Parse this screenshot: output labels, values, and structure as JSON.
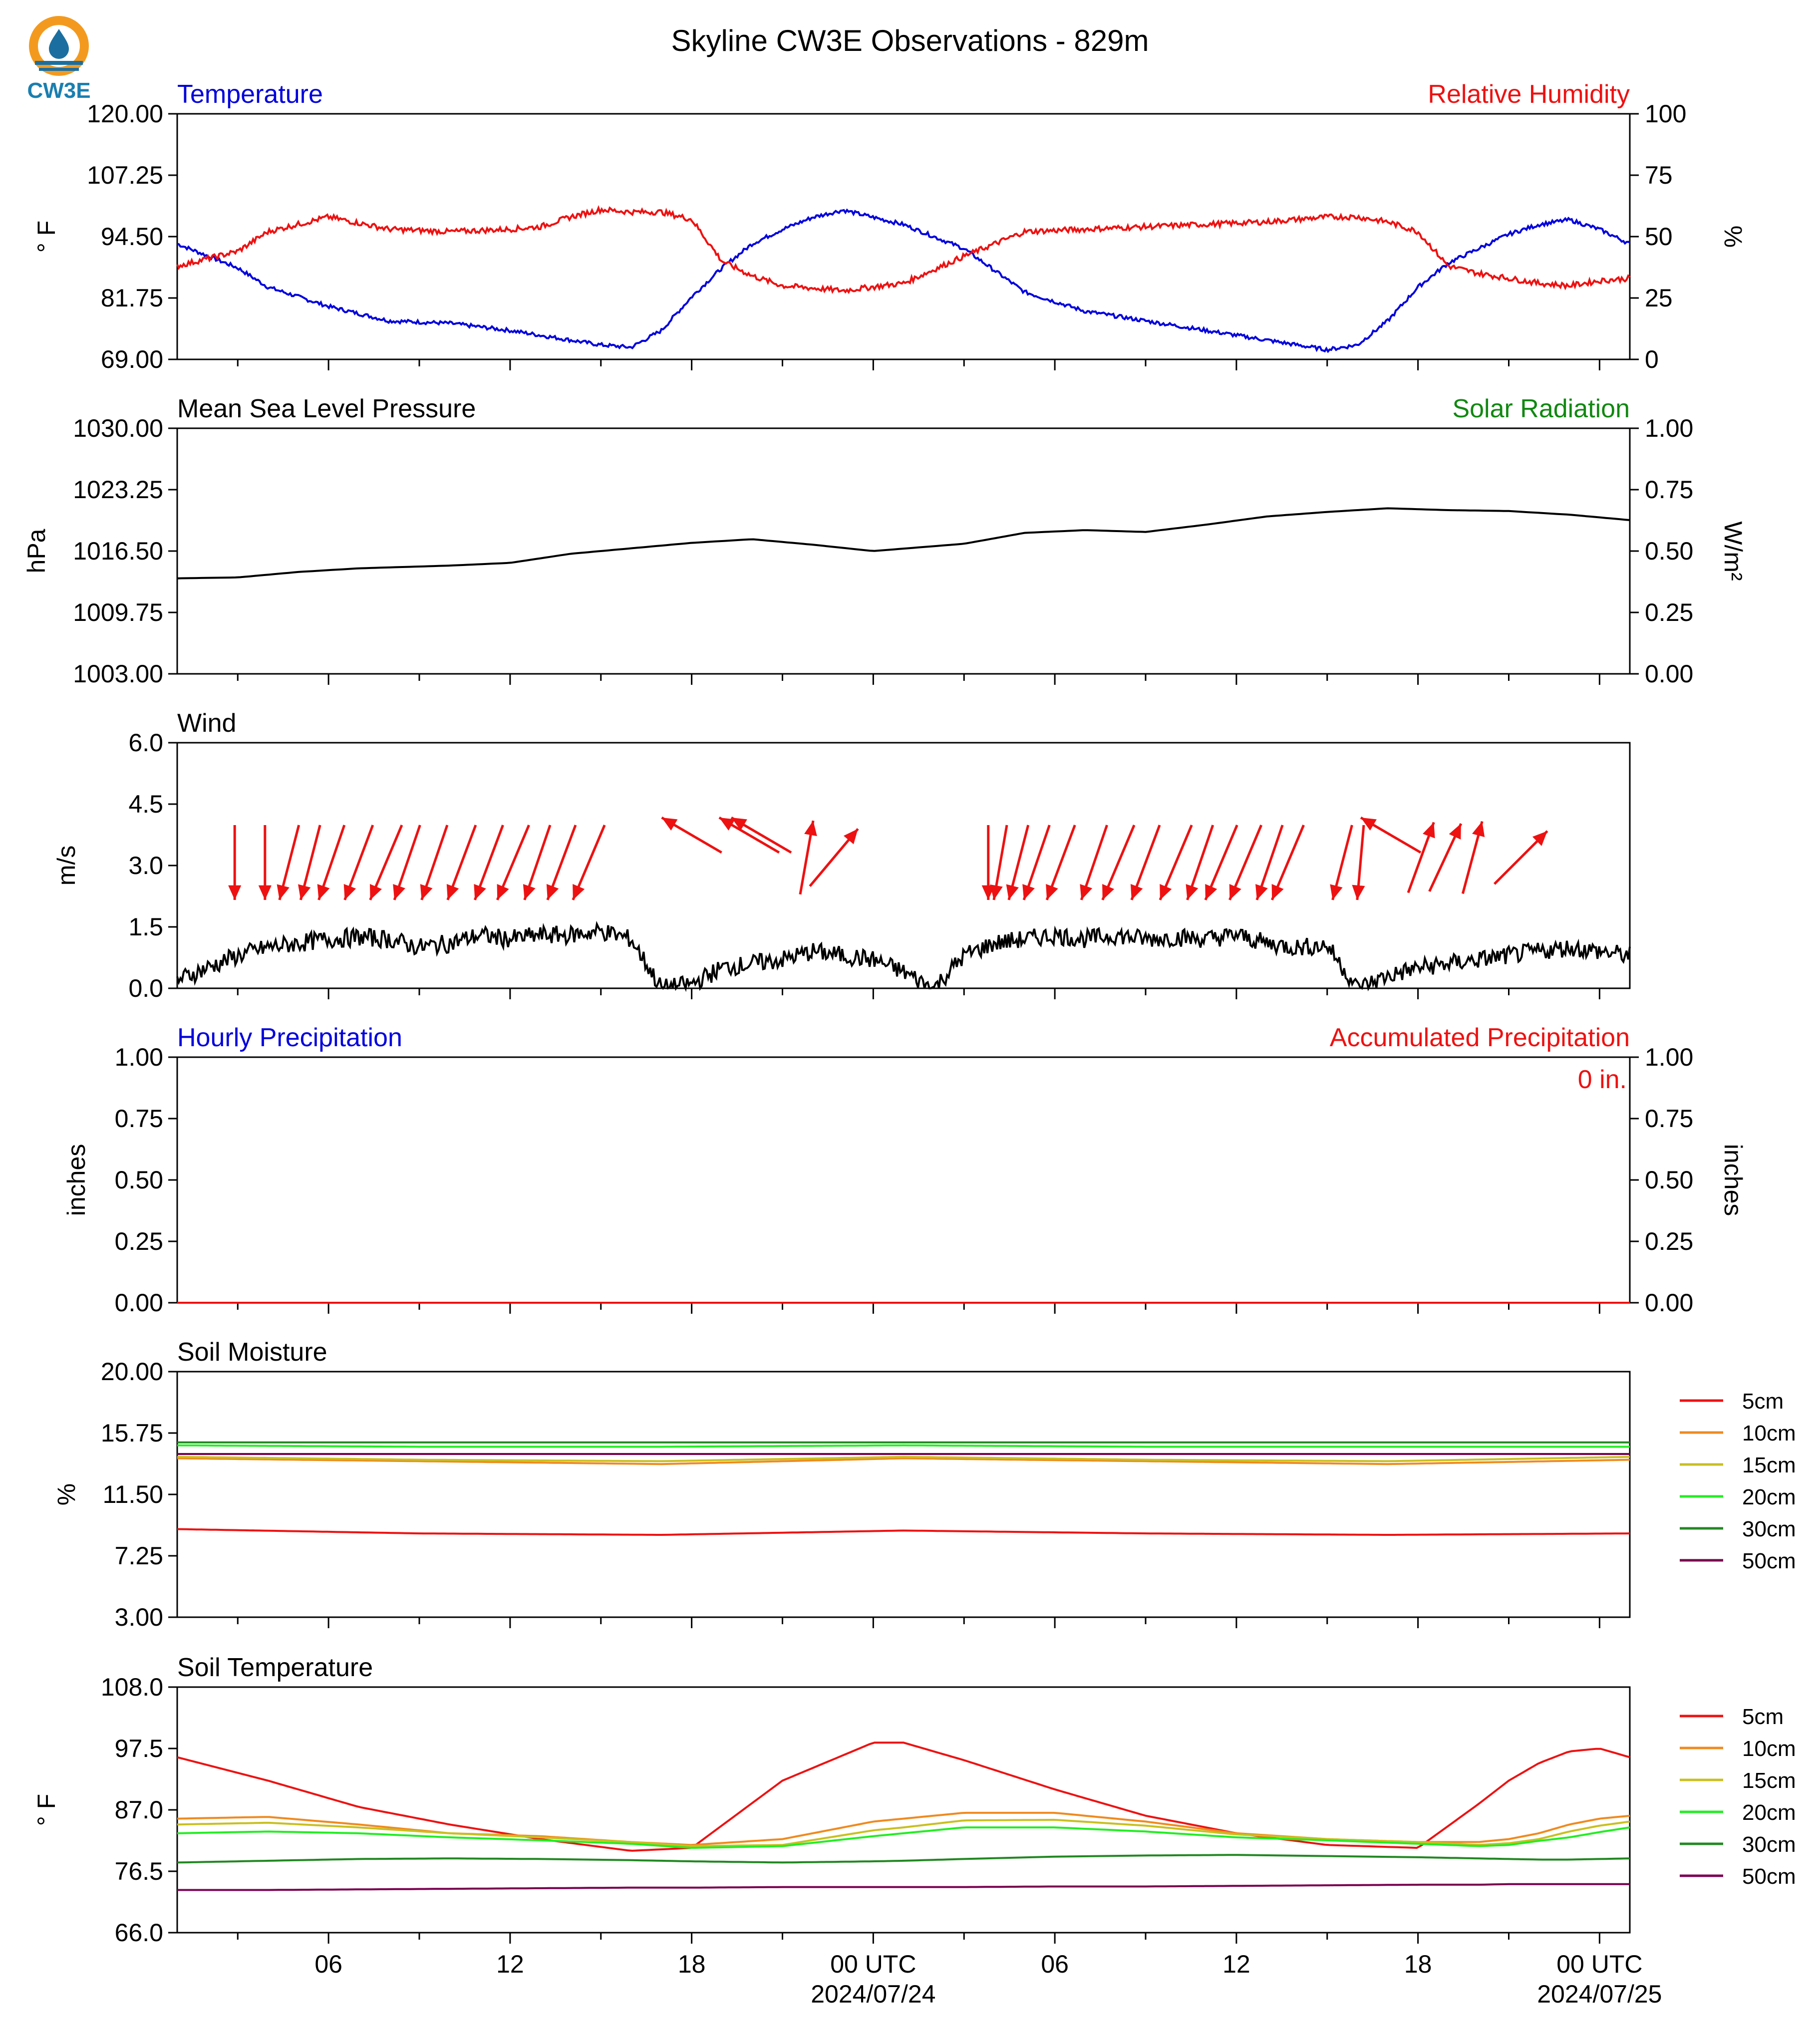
{
  "header": {
    "title": "Skyline CW3E Observations - 829m",
    "logo_text": "CW3E"
  },
  "colors": {
    "blue": "#0000dd",
    "red": "#ee1111",
    "green": "#118811",
    "black": "#000000"
  },
  "x_axis": {
    "tick_labels": [
      "06",
      "12",
      "18",
      "00 UTC",
      "06",
      "12",
      "18",
      "00 UTC"
    ],
    "date_labels": [
      "2024/07/24",
      "2024/07/25"
    ]
  },
  "chart_data": [
    {
      "id": "temperature",
      "type": "line",
      "title_left": "Temperature",
      "title_right": "Relative Humidity",
      "ylabel": "° F",
      "ylabel_right": "%",
      "ylim": [
        69.0,
        120.0
      ],
      "ylim_right": [
        0,
        100
      ],
      "yticks": [
        "69.00",
        "81.75",
        "94.50",
        "107.25",
        "120.00"
      ],
      "yticks_right": [
        "0",
        "25",
        "50",
        "75",
        "100"
      ],
      "x_hours": [
        0,
        2,
        3,
        5,
        7,
        9,
        11,
        12,
        13,
        14,
        15,
        16,
        17,
        18,
        19,
        20,
        21,
        22,
        24,
        26,
        28,
        30,
        32,
        34,
        36,
        37,
        38,
        39,
        40,
        41,
        42,
        43,
        44,
        45,
        46,
        47,
        48
      ],
      "series": [
        {
          "name": "Temperature",
          "color": "#0000dd",
          "axis": "left",
          "values": [
            93,
            88,
            84,
            80,
            77,
            76.5,
            75,
            74,
            73,
            72,
            71.5,
            75,
            82,
            88,
            93,
            96,
            98.5,
            100,
            97,
            92,
            83,
            79,
            77,
            75,
            73,
            72,
            71,
            72,
            77,
            84,
            89,
            92,
            95,
            97,
            98,
            96,
            93
          ]
        },
        {
          "name": "Relative Humidity",
          "color": "#ee1111",
          "axis": "right",
          "values": [
            38,
            44,
            52,
            58,
            53,
            52,
            53,
            54,
            58,
            61,
            60,
            60,
            57,
            40,
            34,
            30,
            29,
            28,
            31,
            42,
            52,
            53,
            54,
            55,
            56,
            57,
            58,
            58,
            56,
            52,
            38,
            35,
            33,
            31,
            30,
            32,
            33
          ]
        }
      ]
    },
    {
      "id": "pressure",
      "type": "line",
      "title_left": "Mean Sea Level Pressure",
      "title_right": "Solar Radiation",
      "ylabel": "hPa",
      "ylabel_right": "W/m²",
      "ylim": [
        1003.0,
        1030.0
      ],
      "ylim_right": [
        0.0,
        1.0
      ],
      "yticks": [
        "1003.00",
        "1009.75",
        "1016.50",
        "1023.25",
        "1030.00"
      ],
      "yticks_right": [
        "0.00",
        "0.25",
        "0.50",
        "0.75",
        "1.00"
      ],
      "x_hours": [
        0,
        2,
        4,
        6,
        9,
        11,
        13,
        15,
        17,
        19,
        21,
        23,
        26,
        28,
        30,
        32,
        34,
        36,
        38,
        40,
        42,
        44,
        46,
        48
      ],
      "series": [
        {
          "name": "Mean Sea Level Pressure",
          "color": "#000000",
          "values": [
            1013.5,
            1013.6,
            1014.2,
            1014.6,
            1014.9,
            1015.2,
            1016.2,
            1016.8,
            1017.4,
            1017.8,
            1017.2,
            1016.5,
            1017.3,
            1018.5,
            1018.8,
            1018.6,
            1019.4,
            1020.3,
            1020.8,
            1021.2,
            1021.0,
            1020.9,
            1020.5,
            1019.9
          ]
        }
      ]
    },
    {
      "id": "wind",
      "type": "line",
      "title_left": "Wind",
      "ylabel": "m/s",
      "ylim": [
        0.0,
        6.0
      ],
      "yticks": [
        "0.0",
        "1.5",
        "3.0",
        "4.5",
        "6.0"
      ],
      "x_hours": [
        0,
        1,
        2,
        3,
        4,
        5,
        6,
        7,
        8,
        9,
        10,
        11,
        12,
        13,
        14,
        15,
        16,
        17,
        18,
        19,
        20,
        21,
        22,
        23,
        24,
        25,
        26,
        27,
        28,
        29,
        30,
        31,
        32,
        33,
        34,
        35,
        36,
        37,
        38,
        39,
        40,
        41,
        42,
        43,
        44,
        45,
        46,
        47,
        48
      ],
      "series": [
        {
          "name": "Wind",
          "color": "#000000",
          "values": [
            0.2,
            0.5,
            0.8,
            1.0,
            1.1,
            1.2,
            1.25,
            1.2,
            1.0,
            1.1,
            1.3,
            1.2,
            1.3,
            1.3,
            1.4,
            1.2,
            0.0,
            0.1,
            0.5,
            0.6,
            0.7,
            0.9,
            0.8,
            0.7,
            0.4,
            0.0,
            0.8,
            1.1,
            1.2,
            1.3,
            1.2,
            1.3,
            1.2,
            1.25,
            1.2,
            1.3,
            1.1,
            1.0,
            1.05,
            0.0,
            0.3,
            0.5,
            0.6,
            0.7,
            0.8,
            0.9,
            1.0,
            0.9,
            0.8
          ]
        }
      ],
      "arrow_color": "#ee1111",
      "arrows_dir_deg": [
        0,
        0,
        15,
        15,
        20,
        22,
        25,
        20,
        20,
        22,
        22,
        25,
        20,
        22,
        25,
        300,
        330,
        355,
        10,
        40,
        0,
        10,
        15,
        20,
        22,
        20,
        25,
        22,
        25,
        20,
        25,
        25,
        20,
        25,
        15,
        5,
        355,
        20,
        25,
        15,
        45
      ],
      "arrows_hours": [
        1.9,
        2.9,
        3.7,
        4.4,
        5.1,
        6.0,
        6.9,
        7.6,
        8.5,
        9.4,
        10.3,
        11.1,
        11.9,
        12.7,
        13.6,
        17.0,
        18.9,
        19.3,
        20.8,
        21.7,
        26.8,
        27.2,
        27.8,
        28.4,
        29.2,
        30.3,
        31.1,
        32.0,
        33.0,
        33.8,
        34.5,
        35.3,
        36.1,
        36.7,
        38.5,
        39.1,
        40.1,
        41.1,
        41.9,
        42.8,
        44.4
      ]
    },
    {
      "id": "precip",
      "type": "line",
      "title_left": "Hourly Precipitation",
      "title_right": "Accumulated Precipitation",
      "ylabel": "inches",
      "ylabel_right": "inches",
      "ylim": [
        0.0,
        1.0
      ],
      "ylim_right": [
        0.0,
        1.0
      ],
      "yticks": [
        "0.00",
        "0.25",
        "0.50",
        "0.75",
        "1.00"
      ],
      "yticks_right": [
        "0.00",
        "0.25",
        "0.50",
        "0.75",
        "1.00"
      ],
      "annotation": "0 in.",
      "x_hours": [
        0,
        48
      ],
      "series": [
        {
          "name": "Hourly Precipitation",
          "color": "#ee1111",
          "values": [
            0,
            0
          ]
        }
      ]
    },
    {
      "id": "soil_moisture",
      "type": "line",
      "title_left": "Soil Moisture",
      "ylabel": "%",
      "ylim": [
        3.0,
        20.0
      ],
      "yticks": [
        "3.00",
        "7.25",
        "11.50",
        "15.75",
        "20.00"
      ],
      "x_hours": [
        0,
        8,
        16,
        24,
        32,
        40,
        48
      ],
      "series": [
        {
          "name": "5cm",
          "color": "#ee1111",
          "values": [
            9.1,
            8.8,
            8.7,
            9.0,
            8.8,
            8.7,
            8.8
          ]
        },
        {
          "name": "10cm",
          "color": "#f08a1e",
          "values": [
            14.0,
            13.8,
            13.6,
            14.0,
            13.8,
            13.6,
            13.9
          ]
        },
        {
          "name": "15cm",
          "color": "#c8c020",
          "values": [
            14.1,
            13.9,
            13.8,
            14.1,
            13.9,
            13.8,
            14.1
          ]
        },
        {
          "name": "20cm",
          "color": "#22ee22",
          "values": [
            14.9,
            14.8,
            14.8,
            14.9,
            14.8,
            14.8,
            14.8
          ]
        },
        {
          "name": "30cm",
          "color": "#228822",
          "values": [
            15.1,
            15.1,
            15.1,
            15.1,
            15.1,
            15.1,
            15.1
          ]
        },
        {
          "name": "50cm",
          "color": "#7a0050",
          "values": [
            14.3,
            14.3,
            14.3,
            14.3,
            14.3,
            14.3,
            14.3
          ]
        }
      ]
    },
    {
      "id": "soil_temperature",
      "type": "line",
      "title_left": "Soil Temperature",
      "ylabel": "° F",
      "ylim": [
        66.0,
        108.0
      ],
      "yticks": [
        "66.0",
        "76.5",
        "87.0",
        "97.5",
        "108.0"
      ],
      "x_hours": [
        0,
        3,
        6,
        9,
        12,
        15,
        17,
        20,
        23,
        24,
        26,
        29,
        32,
        35,
        38,
        41,
        43,
        44,
        45,
        46,
        47,
        48
      ],
      "series": [
        {
          "name": "5cm",
          "color": "#ee1111",
          "values": [
            96,
            92,
            87.5,
            84.5,
            82,
            80,
            80.5,
            92,
            98.5,
            98.5,
            95.5,
            90.5,
            86,
            83,
            81,
            80.5,
            88,
            92,
            95,
            97,
            97.5,
            96
          ]
        },
        {
          "name": "10cm",
          "color": "#f08a1e",
          "values": [
            85.5,
            85.8,
            84.5,
            83,
            82.5,
            81.5,
            81,
            82,
            85,
            85.5,
            86.5,
            86.5,
            85,
            83,
            82,
            81.5,
            81.5,
            82,
            83,
            84.5,
            85.5,
            86
          ]
        },
        {
          "name": "15cm",
          "color": "#c8c020",
          "values": [
            84.5,
            84.8,
            84,
            83,
            82.3,
            81.5,
            80.8,
            81,
            83.5,
            84,
            85.2,
            85.3,
            84.3,
            82.8,
            82,
            81.5,
            81,
            81.3,
            82,
            83.3,
            84.3,
            85
          ]
        },
        {
          "name": "20cm",
          "color": "#22ee22",
          "values": [
            83,
            83.3,
            83,
            82.3,
            81.8,
            81.2,
            80.5,
            80.8,
            82.5,
            83,
            84,
            84,
            83.3,
            82.3,
            81.8,
            81.2,
            80.8,
            81,
            81.7,
            82.3,
            83.2,
            84
          ]
        },
        {
          "name": "30cm",
          "color": "#228822",
          "values": [
            78,
            78.3,
            78.6,
            78.7,
            78.6,
            78.4,
            78.2,
            78,
            78.2,
            78.3,
            78.6,
            79,
            79.2,
            79.3,
            79.1,
            78.9,
            78.7,
            78.6,
            78.5,
            78.5,
            78.6,
            78.7
          ]
        },
        {
          "name": "50cm",
          "color": "#7a0050",
          "values": [
            73.3,
            73.3,
            73.4,
            73.5,
            73.6,
            73.7,
            73.7,
            73.8,
            73.8,
            73.8,
            73.8,
            73.9,
            73.9,
            74,
            74.1,
            74.2,
            74.2,
            74.3,
            74.3,
            74.3,
            74.3,
            74.3
          ]
        }
      ],
      "legend": [
        "5cm",
        "10cm",
        "15cm",
        "20cm",
        "30cm",
        "50cm"
      ]
    }
  ]
}
